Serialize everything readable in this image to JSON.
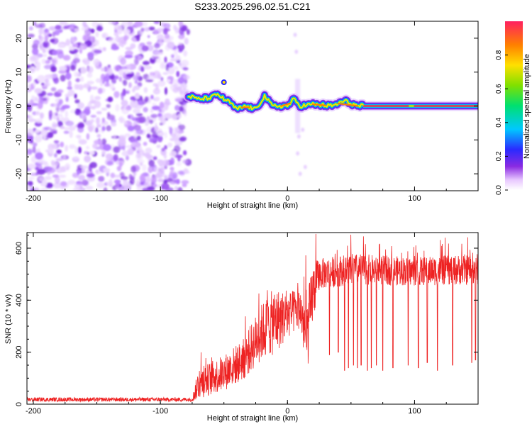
{
  "chart_data": [
    {
      "type": "heatmap",
      "title": "S233.2025.296.02.51.C21",
      "xlabel": "Height of straight line (km)",
      "ylabel": "Frequency (Hz)",
      "xlim": [
        -205,
        150
      ],
      "ylim": [
        -25,
        25
      ],
      "xticks": [
        -200,
        -100,
        0,
        100
      ],
      "xtick_labels": [
        "-200",
        "-100",
        "0",
        "100"
      ],
      "yticks": [
        20,
        10,
        0,
        -10,
        -20
      ],
      "ytick_labels": [
        "20",
        "10",
        "0",
        "-10",
        "-20"
      ],
      "noise_region_x": [
        -205,
        -78
      ],
      "ridge": [
        {
          "x": -78,
          "y": 3
        },
        {
          "x": -70,
          "y": 2
        },
        {
          "x": -60,
          "y": 2.5
        },
        {
          "x": -55,
          "y": 3.5
        },
        {
          "x": -50,
          "y": 2
        },
        {
          "x": -45,
          "y": 1
        },
        {
          "x": -40,
          "y": -1
        },
        {
          "x": -33,
          "y": 0
        },
        {
          "x": -25,
          "y": -1
        },
        {
          "x": -18,
          "y": 3
        },
        {
          "x": -12,
          "y": 0
        },
        {
          "x": -5,
          "y": 0
        },
        {
          "x": 0,
          "y": 0
        },
        {
          "x": 5,
          "y": 2
        },
        {
          "x": 10,
          "y": 0
        },
        {
          "x": 20,
          "y": 0.5
        },
        {
          "x": 35,
          "y": 0
        },
        {
          "x": 45,
          "y": 1.5
        },
        {
          "x": 55,
          "y": 0
        },
        {
          "x": 70,
          "y": 0
        },
        {
          "x": 90,
          "y": 0
        },
        {
          "x": 110,
          "y": 0
        },
        {
          "x": 130,
          "y": 0
        },
        {
          "x": 150,
          "y": 0
        }
      ],
      "colorbar": {
        "label": "Normalized spectral amplitude",
        "range": [
          0,
          1
        ],
        "ticks": [
          0,
          0.2,
          0.4,
          0.6,
          0.8
        ],
        "tick_labels": [
          "0.0",
          "0.2",
          "0.4",
          "0.6",
          "0.8"
        ]
      }
    },
    {
      "type": "line",
      "xlabel": "Height of straight line (km)",
      "ylabel": "SNR (10 * v/v)",
      "xlim": [
        -205,
        150
      ],
      "ylim": [
        0,
        660
      ],
      "xticks": [
        -200,
        -100,
        0,
        100
      ],
      "xtick_labels": [
        "-200",
        "-100",
        "0",
        "100"
      ],
      "yticks": [
        0,
        200,
        400,
        600
      ],
      "ytick_labels": [
        "0",
        "200",
        "400",
        "600"
      ],
      "series": [
        {
          "name": "SNR",
          "color": "#ee2222",
          "envelope": [
            {
              "x": -205,
              "mean": 18,
              "noise": 8
            },
            {
              "x": -75,
              "mean": 18,
              "noise": 8
            },
            {
              "x": -70,
              "mean": 80,
              "noise": 60
            },
            {
              "x": -50,
              "mean": 120,
              "noise": 70
            },
            {
              "x": -35,
              "mean": 170,
              "noise": 80
            },
            {
              "x": -20,
              "mean": 280,
              "noise": 110
            },
            {
              "x": -10,
              "mean": 320,
              "noise": 130
            },
            {
              "x": 0,
              "mean": 340,
              "noise": 90
            },
            {
              "x": 10,
              "mean": 370,
              "noise": 80
            },
            {
              "x": 15,
              "mean": 250,
              "noise": 150
            },
            {
              "x": 20,
              "mean": 430,
              "noise": 120
            },
            {
              "x": 25,
              "mean": 500,
              "noise": 60
            },
            {
              "x": 50,
              "mean": 520,
              "noise": 60
            },
            {
              "x": 100,
              "mean": 510,
              "noise": 55
            },
            {
              "x": 150,
              "mean": 520,
              "noise": 60
            }
          ],
          "dropouts": [
            {
              "x": 33,
              "y": 190
            },
            {
              "x": 40,
              "y": 200
            },
            {
              "x": 45,
              "y": 130
            },
            {
              "x": 48,
              "y": 140
            },
            {
              "x": 52,
              "y": 150
            },
            {
              "x": 55,
              "y": 140
            },
            {
              "x": 58,
              "y": 150
            },
            {
              "x": 63,
              "y": 130
            },
            {
              "x": 66,
              "y": 140
            },
            {
              "x": 70,
              "y": 150
            },
            {
              "x": 75,
              "y": 130
            },
            {
              "x": 83,
              "y": 140
            },
            {
              "x": 95,
              "y": 150
            },
            {
              "x": 103,
              "y": 140
            },
            {
              "x": 110,
              "y": 160
            },
            {
              "x": 118,
              "y": 130
            },
            {
              "x": 130,
              "y": 150
            },
            {
              "x": 145,
              "y": 160
            },
            {
              "x": 148,
              "y": 170
            }
          ]
        }
      ]
    }
  ]
}
